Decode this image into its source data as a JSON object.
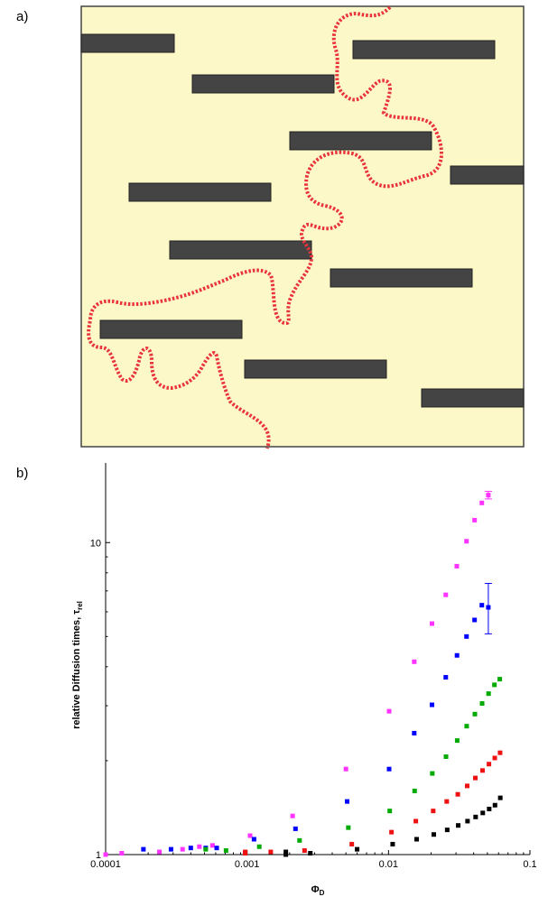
{
  "panel_a": {
    "label": "a)",
    "background_color": "#fdf8c8",
    "platelet_color": "#444444",
    "path_color": "#e8343a"
  },
  "panel_b": {
    "label": "b)"
  },
  "chart_data": {
    "type": "scatter",
    "x_scale": "log",
    "y_scale": "log",
    "xlim": [
      0.0001,
      0.1
    ],
    "ylim": [
      1,
      18
    ],
    "xlabel_main": "Φ",
    "xlabel_sub": "D",
    "ylabel_main": "relative Diffusion times, τ",
    "ylabel_sub": "rel",
    "x_ticks": [
      {
        "value": 0.0001,
        "label": "0.0001"
      },
      {
        "value": 0.001,
        "label": "0.001"
      },
      {
        "value": 0.01,
        "label": "0.01"
      },
      {
        "value": 0.1,
        "label": "0.1"
      }
    ],
    "y_ticks": [
      {
        "value": 1,
        "label": "1"
      },
      {
        "value": 10,
        "label": "10"
      }
    ],
    "series": [
      {
        "color": "#ff33ff",
        "points": [
          [
            0.0001,
            1.0
          ],
          [
            0.00013,
            1.01
          ],
          [
            0.00024,
            1.02
          ],
          [
            0.00035,
            1.04
          ],
          [
            0.00046,
            1.06
          ],
          [
            0.00057,
            1.07
          ],
          [
            0.00105,
            1.15
          ],
          [
            0.0021,
            1.33
          ],
          [
            0.005,
            1.88
          ],
          [
            0.0101,
            2.88
          ],
          [
            0.0152,
            4.15
          ],
          [
            0.0203,
            5.5
          ],
          [
            0.0254,
            6.8
          ],
          [
            0.0304,
            8.4
          ],
          [
            0.0356,
            10.1
          ],
          [
            0.0406,
            11.8
          ],
          [
            0.0457,
            13.4
          ],
          [
            0.0508,
            14.2
          ]
        ],
        "error_last": [
          13.8,
          14.6
        ]
      },
      {
        "color": "#0000ff",
        "points": [
          [
            0.000185,
            1.04
          ],
          [
            0.00029,
            1.04
          ],
          [
            0.0004,
            1.05
          ],
          [
            0.00051,
            1.05
          ],
          [
            0.00061,
            1.05
          ],
          [
            0.00112,
            1.12
          ],
          [
            0.0022,
            1.21
          ],
          [
            0.0051,
            1.48
          ],
          [
            0.0101,
            1.88
          ],
          [
            0.0152,
            2.45
          ],
          [
            0.0203,
            3.02
          ],
          [
            0.0254,
            3.7
          ],
          [
            0.0305,
            4.35
          ],
          [
            0.0356,
            5.0
          ],
          [
            0.0406,
            5.65
          ],
          [
            0.0457,
            6.3
          ],
          [
            0.0508,
            6.2
          ]
        ],
        "error_last": [
          5.1,
          7.4
        ]
      },
      {
        "color": "#00aa00",
        "points": [
          [
            0.00051,
            1.04
          ],
          [
            0.00071,
            1.03
          ],
          [
            0.00122,
            1.06
          ],
          [
            0.00235,
            1.11
          ],
          [
            0.0052,
            1.22
          ],
          [
            0.0102,
            1.38
          ],
          [
            0.0153,
            1.6
          ],
          [
            0.0204,
            1.82
          ],
          [
            0.0255,
            2.06
          ],
          [
            0.0306,
            2.32
          ],
          [
            0.0357,
            2.58
          ],
          [
            0.0408,
            2.82
          ],
          [
            0.0459,
            3.05
          ],
          [
            0.051,
            3.28
          ],
          [
            0.0561,
            3.5
          ],
          [
            0.0612,
            3.65
          ]
        ]
      },
      {
        "color": "#ee1111",
        "points": [
          [
            0.00097,
            1.02
          ],
          [
            0.00097,
            1.01
          ],
          [
            0.00147,
            1.02
          ],
          [
            0.00255,
            1.03
          ],
          [
            0.0055,
            1.08
          ],
          [
            0.0105,
            1.18
          ],
          [
            0.0156,
            1.28
          ],
          [
            0.0207,
            1.38
          ],
          [
            0.0258,
            1.48
          ],
          [
            0.0309,
            1.56
          ],
          [
            0.036,
            1.66
          ],
          [
            0.0411,
            1.76
          ],
          [
            0.0462,
            1.86
          ],
          [
            0.0513,
            1.95
          ],
          [
            0.0564,
            2.04
          ],
          [
            0.0615,
            2.12
          ]
        ]
      },
      {
        "color": "#000000",
        "points": [
          [
            0.00188,
            1.02
          ],
          [
            0.00188,
            1.0
          ],
          [
            0.0028,
            1.01
          ],
          [
            0.006,
            1.04
          ],
          [
            0.0107,
            1.08
          ],
          [
            0.0158,
            1.12
          ],
          [
            0.0209,
            1.16
          ],
          [
            0.026,
            1.2
          ],
          [
            0.0311,
            1.24
          ],
          [
            0.0362,
            1.28
          ],
          [
            0.0413,
            1.32
          ],
          [
            0.0464,
            1.36
          ],
          [
            0.0515,
            1.4
          ],
          [
            0.0566,
            1.44
          ],
          [
            0.0617,
            1.52
          ]
        ]
      }
    ]
  }
}
